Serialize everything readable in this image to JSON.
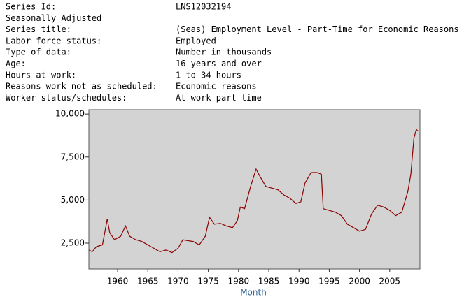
{
  "header": [
    {
      "label": "Series Id:",
      "value": "LNS12032194"
    },
    {
      "label": "Seasonally Adjusted",
      "value": null
    },
    {
      "label": "Series title:",
      "value": "(Seas) Employment Level - Part-Time for Economic Reasons"
    },
    {
      "label": "Labor force status:",
      "value": "Employed"
    },
    {
      "label": "Type of data:",
      "value": "Number in thousands"
    },
    {
      "label": "Age:",
      "value": "16 years and over"
    },
    {
      "label": "Hours at work:",
      "value": "1 to 34 hours"
    },
    {
      "label": "Reasons work not as scheduled:",
      "value": "Economic reasons"
    },
    {
      "label": "Worker status/schedules:",
      "value": "At work part time"
    }
  ],
  "chart_data": {
    "type": "line",
    "x_label": "Month",
    "x": [
      1955.3,
      1955.8,
      1956.5,
      1957.5,
      1958.3,
      1958.7,
      1959.5,
      1960.5,
      1961.3,
      1962,
      1963,
      1964,
      1965,
      1966,
      1967,
      1968,
      1969,
      1970,
      1970.8,
      1971.5,
      1972.5,
      1973.5,
      1974.5,
      1975.2,
      1976,
      1977,
      1978,
      1979,
      1979.8,
      1980.3,
      1981,
      1982,
      1982.9,
      1983.5,
      1984.5,
      1985.5,
      1986.5,
      1987.5,
      1988.5,
      1989.5,
      1990.3,
      1991,
      1992,
      1993,
      1993.7,
      1994,
      1995,
      1996,
      1997,
      1998,
      1999,
      2000,
      2001,
      2002,
      2003,
      2004,
      2005,
      2006,
      2007,
      2008,
      2008.5,
      2009,
      2009.4,
      2009.7
    ],
    "series": [
      {
        "name": "LNS12032194",
        "color": "#8b0000",
        "values": [
          2100,
          2000,
          2300,
          2400,
          3900,
          3100,
          2700,
          2900,
          3500,
          2900,
          2700,
          2600,
          2400,
          2200,
          2000,
          2100,
          1950,
          2200,
          2700,
          2650,
          2600,
          2400,
          2900,
          4000,
          3600,
          3650,
          3500,
          3400,
          3800,
          4600,
          4500,
          5800,
          6800,
          6400,
          5800,
          5700,
          5600,
          5300,
          5100,
          4800,
          4900,
          6000,
          6600,
          6600,
          6500,
          4500,
          4400,
          4300,
          4100,
          3600,
          3400,
          3200,
          3300,
          4200,
          4700,
          4600,
          4400,
          4100,
          4300,
          5500,
          6500,
          8600,
          9100,
          9000
        ]
      }
    ],
    "xlim": [
      1955.25,
      2010
    ],
    "xticks": [
      1960,
      1965,
      1970,
      1975,
      1980,
      1985,
      1990,
      1995,
      2000,
      2005
    ],
    "ylim": [
      1000,
      10250
    ],
    "yticks": [
      {
        "value": 2500,
        "label": "2,500"
      },
      {
        "value": 5000,
        "label": "5,000"
      },
      {
        "value": 7500,
        "label": "7,500"
      },
      {
        "value": 10000,
        "label": "10,000"
      }
    ],
    "plot_background": "#d3d3d3"
  }
}
